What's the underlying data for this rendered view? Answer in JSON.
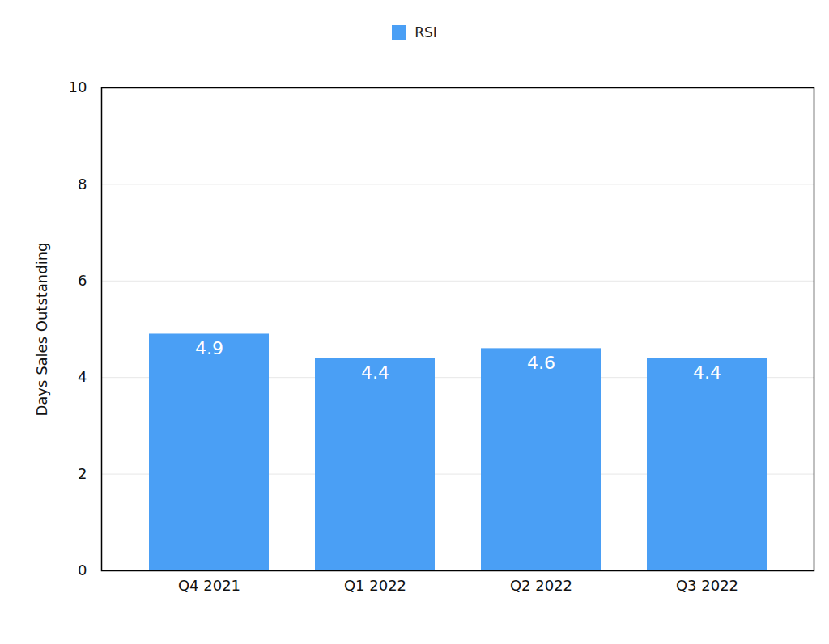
{
  "chart_data": {
    "type": "bar",
    "categories": [
      "Q4 2021",
      "Q1 2022",
      "Q2 2022",
      "Q3 2022"
    ],
    "series": [
      {
        "name": "RSI",
        "color": "#4a9ff5",
        "values": [
          4.9,
          4.4,
          4.6,
          4.4
        ]
      }
    ],
    "y_label": "Days Sales Outstanding",
    "ylim": [
      0,
      10
    ],
    "yticks": [
      0,
      2,
      4,
      6,
      8,
      10
    ],
    "grid": true,
    "legend": "top",
    "data_labels": true
  }
}
